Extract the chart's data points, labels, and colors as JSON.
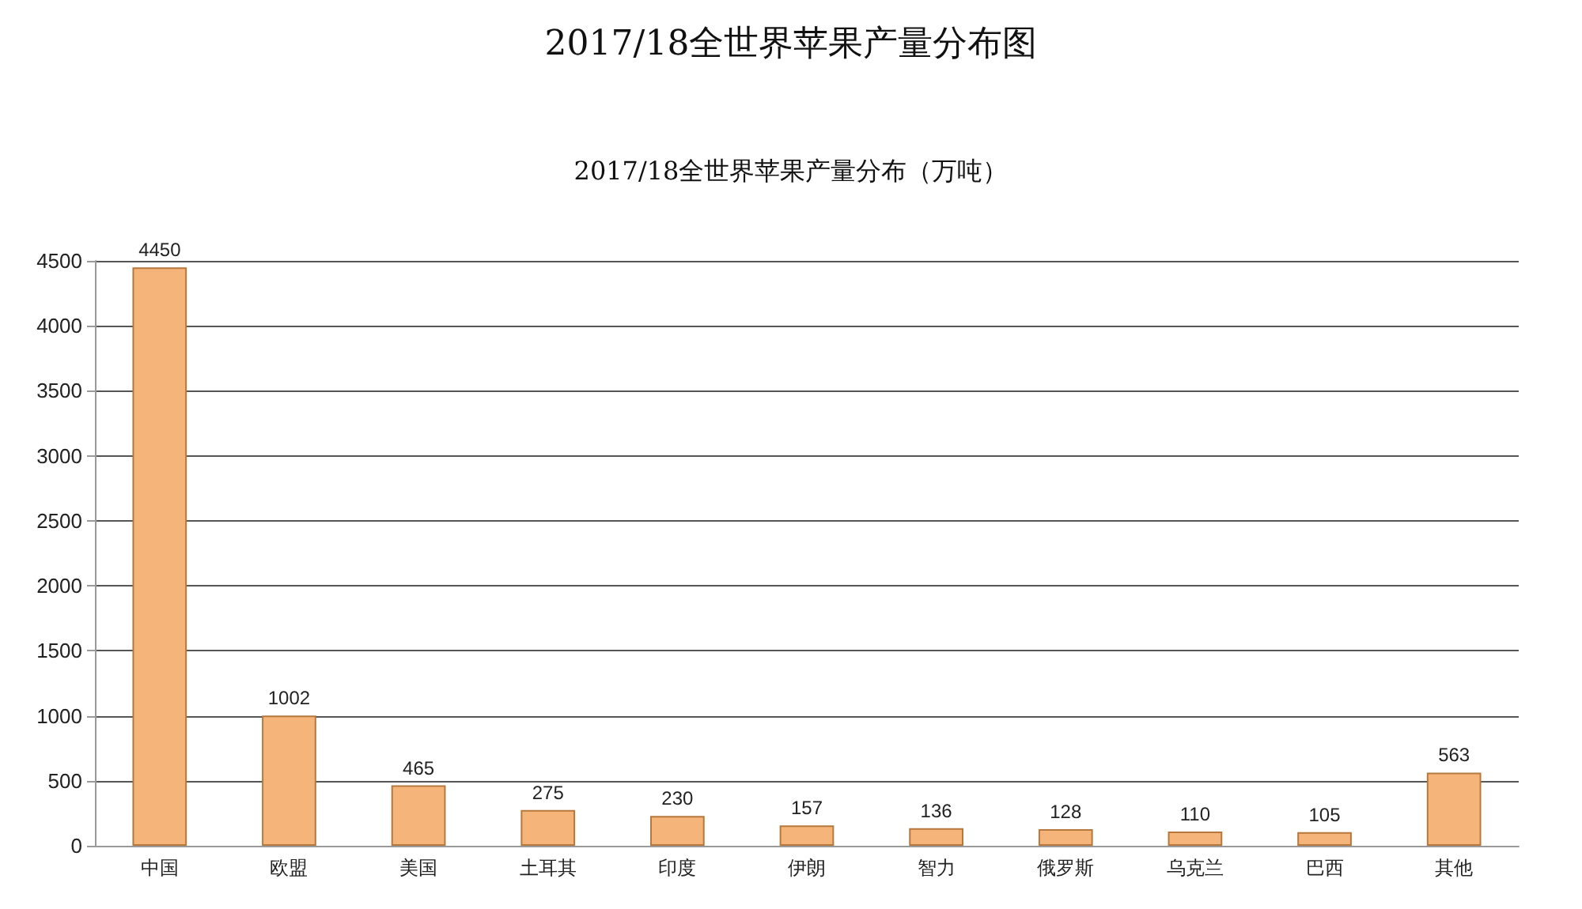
{
  "chart_data": {
    "type": "bar",
    "title": "2017/18全世界苹果产量分布图",
    "subtitle": "2017/18全世界苹果产量分布（万吨）",
    "categories": [
      "中国",
      "欧盟",
      "美国",
      "土耳其",
      "印度",
      "伊朗",
      "智力",
      "俄罗斯",
      "乌克兰",
      "巴西",
      "其他"
    ],
    "values": [
      4450,
      1002,
      465,
      275,
      230,
      157,
      136,
      128,
      110,
      105,
      563
    ],
    "color": "#f5b57a",
    "ylim": [
      0,
      4500
    ],
    "yticks": [
      0,
      500,
      1000,
      1500,
      2000,
      2500,
      3000,
      3500,
      4000,
      4500
    ],
    "grid": "y",
    "data_labels": true
  }
}
